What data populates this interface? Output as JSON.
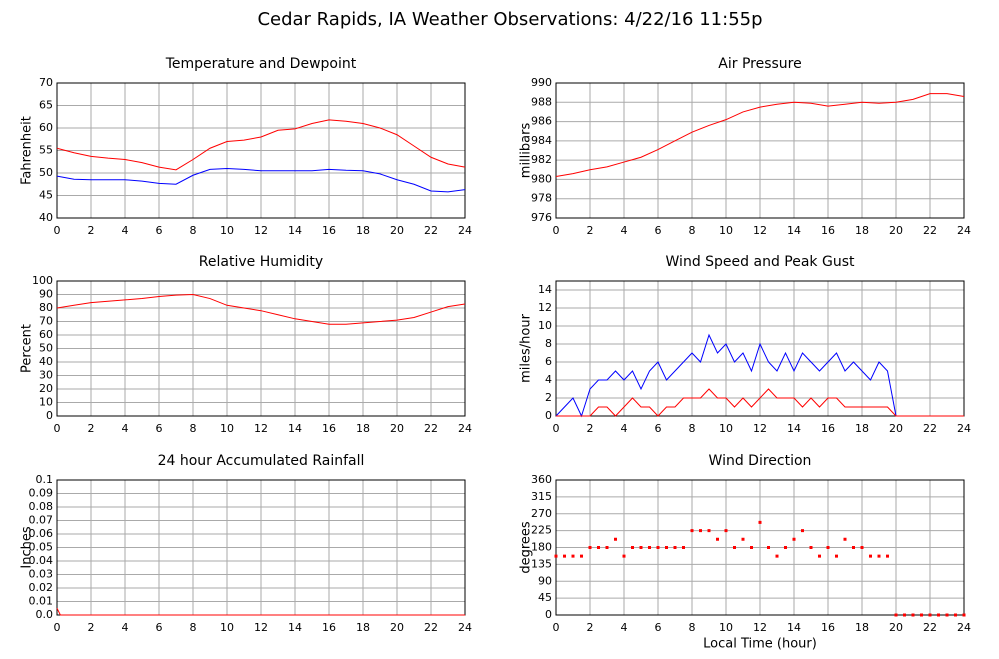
{
  "title": "Cedar Rapids, IA Weather Observations: 4/22/16 11:55p",
  "chart_data": [
    {
      "type": "line",
      "title": "Temperature and Dewpoint",
      "ylabel": "Fahrenheit",
      "x": [
        0,
        1,
        2,
        3,
        4,
        5,
        6,
        7,
        8,
        9,
        10,
        11,
        12,
        13,
        14,
        15,
        16,
        17,
        18,
        19,
        20,
        21,
        22,
        23,
        24
      ],
      "series": [
        {
          "color": "#ff0000",
          "values": [
            55.5,
            54.5,
            53.7,
            53.3,
            53,
            52.3,
            51.3,
            50.7,
            53,
            55.5,
            57,
            57.3,
            58,
            59.5,
            59.8,
            61,
            61.8,
            61.5,
            61,
            60,
            58.5,
            56,
            53.5,
            52,
            51.3
          ]
        },
        {
          "color": "#0000ff",
          "values": [
            49.3,
            48.6,
            48.5,
            48.5,
            48.5,
            48.2,
            47.7,
            47.5,
            49.5,
            50.8,
            51,
            50.8,
            50.5,
            50.5,
            50.5,
            50.5,
            50.8,
            50.6,
            50.5,
            49.8,
            48.5,
            47.5,
            46,
            45.8,
            46.3
          ]
        }
      ],
      "xlim": [
        0,
        24
      ],
      "xticks": [
        0,
        2,
        4,
        6,
        8,
        10,
        12,
        14,
        16,
        18,
        20,
        22,
        24
      ],
      "ylim": [
        40,
        70
      ],
      "yticks": [
        40,
        45,
        50,
        55,
        60,
        65,
        70
      ],
      "grid": true
    },
    {
      "type": "line",
      "title": "Air Pressure",
      "ylabel": "millibars",
      "x": [
        0,
        1,
        2,
        3,
        4,
        5,
        6,
        7,
        8,
        9,
        10,
        11,
        12,
        13,
        14,
        15,
        16,
        17,
        18,
        19,
        20,
        21,
        22,
        23,
        24
      ],
      "series": [
        {
          "color": "#ff0000",
          "values": [
            980.3,
            980.6,
            981,
            981.3,
            981.8,
            982.3,
            983.1,
            984,
            984.9,
            985.6,
            986.2,
            987,
            987.5,
            987.8,
            988,
            987.9,
            987.6,
            987.8,
            988,
            987.9,
            988,
            988.3,
            988.9,
            988.9,
            988.6
          ]
        }
      ],
      "xlim": [
        0,
        24
      ],
      "xticks": [
        0,
        2,
        4,
        6,
        8,
        10,
        12,
        14,
        16,
        18,
        20,
        22,
        24
      ],
      "ylim": [
        976,
        990
      ],
      "yticks": [
        976,
        978,
        980,
        982,
        984,
        986,
        988,
        990
      ],
      "grid": true
    },
    {
      "type": "line",
      "title": "Relative Humidity",
      "ylabel": "Percent",
      "x": [
        0,
        1,
        2,
        3,
        4,
        5,
        6,
        7,
        8,
        9,
        10,
        11,
        12,
        13,
        14,
        15,
        16,
        17,
        18,
        19,
        20,
        21,
        22,
        23,
        24
      ],
      "series": [
        {
          "color": "#ff0000",
          "values": [
            80,
            82,
            84,
            85,
            86,
            87,
            88.5,
            89.5,
            90,
            87,
            82,
            80,
            78,
            75,
            72,
            70,
            68,
            68,
            69,
            70,
            71,
            73,
            77,
            81,
            83
          ]
        }
      ],
      "xlim": [
        0,
        24
      ],
      "xticks": [
        0,
        2,
        4,
        6,
        8,
        10,
        12,
        14,
        16,
        18,
        20,
        22,
        24
      ],
      "ylim": [
        0,
        100
      ],
      "yticks": [
        0,
        10,
        20,
        30,
        40,
        50,
        60,
        70,
        80,
        90,
        100
      ],
      "grid": true
    },
    {
      "type": "line",
      "title": "Wind Speed and Peak Gust",
      "ylabel": "miles/hour",
      "x": [
        0,
        0.5,
        1,
        1.5,
        2,
        2.5,
        3,
        3.5,
        4,
        4.5,
        5,
        5.5,
        6,
        6.5,
        7,
        7.5,
        8,
        8.5,
        9,
        9.5,
        10,
        10.5,
        11,
        11.5,
        12,
        12.5,
        13,
        13.5,
        14,
        14.5,
        15,
        15.5,
        16,
        16.5,
        17,
        17.5,
        18,
        18.5,
        19,
        19.5,
        20,
        20.5,
        21,
        21.5,
        22,
        22.5,
        23,
        23.5,
        24
      ],
      "series": [
        {
          "color": "#0000ff",
          "values": [
            0,
            1,
            2,
            0,
            3,
            4,
            4,
            5,
            4,
            5,
            3,
            5,
            6,
            4,
            5,
            6,
            7,
            6,
            9,
            7,
            8,
            6,
            7,
            5,
            8,
            6,
            5,
            7,
            5,
            7,
            6,
            5,
            6,
            7,
            5,
            6,
            5,
            4,
            6,
            5,
            0,
            0,
            0,
            0,
            0,
            0,
            0,
            0,
            0
          ]
        },
        {
          "color": "#ff0000",
          "values": [
            0,
            0,
            0,
            0,
            0,
            1,
            1,
            0,
            1,
            2,
            1,
            1,
            0,
            1,
            1,
            2,
            2,
            2,
            3,
            2,
            2,
            1,
            2,
            1,
            2,
            3,
            2,
            2,
            2,
            1,
            2,
            1,
            2,
            2,
            1,
            1,
            1,
            1,
            1,
            1,
            0,
            0,
            0,
            0,
            0,
            0,
            0,
            0,
            0
          ]
        }
      ],
      "xlim": [
        0,
        24
      ],
      "xticks": [
        0,
        2,
        4,
        6,
        8,
        10,
        12,
        14,
        16,
        18,
        20,
        22,
        24
      ],
      "ylim": [
        0,
        15
      ],
      "yticks": [
        0,
        2,
        4,
        6,
        8,
        10,
        12,
        14
      ],
      "grid": true
    },
    {
      "type": "line",
      "title": "24 hour Accumulated Rainfall",
      "ylabel": "Inches",
      "x": [
        0,
        0.2,
        24
      ],
      "series": [
        {
          "color": "#ff0000",
          "values": [
            0.005,
            0,
            0
          ]
        }
      ],
      "xlim": [
        0,
        24
      ],
      "xticks": [
        0,
        2,
        4,
        6,
        8,
        10,
        12,
        14,
        16,
        18,
        20,
        22,
        24
      ],
      "ylim": [
        0,
        0.1
      ],
      "yticks": [
        {
          "value": 0,
          "label": "0.0"
        },
        0.01,
        0.02,
        0.03,
        0.04,
        0.05,
        0.06,
        0.07,
        0.08,
        0.09,
        0.1
      ],
      "grid": true
    },
    {
      "type": "scatter",
      "title": "Wind Direction",
      "ylabel": "degrees",
      "xlabel": "Local Time (hour)",
      "x": [
        0,
        0.5,
        1,
        1.5,
        2,
        2.5,
        3,
        3.5,
        4,
        4.5,
        5,
        5.5,
        6,
        6.5,
        7,
        7.5,
        8,
        8.5,
        9,
        9.5,
        10,
        10.5,
        11,
        11.5,
        12,
        12.5,
        13,
        13.5,
        14,
        14.5,
        15,
        15.5,
        16,
        16.5,
        17,
        17.5,
        18,
        18.5,
        19,
        19.5,
        20,
        20.5,
        21,
        21.5,
        22,
        22.5,
        23,
        23.5,
        24
      ],
      "series": [
        {
          "color": "#ff0000",
          "values": [
            157,
            157,
            157,
            157,
            180,
            180,
            180,
            202,
            157,
            180,
            180,
            180,
            180,
            180,
            180,
            180,
            225,
            225,
            225,
            202,
            225,
            180,
            202,
            180,
            247,
            180,
            157,
            180,
            202,
            225,
            180,
            157,
            180,
            157,
            202,
            180,
            180,
            157,
            157,
            157,
            0,
            0,
            0,
            0,
            0,
            0,
            0,
            0,
            0
          ]
        }
      ],
      "xlim": [
        0,
        24
      ],
      "xticks": [
        0,
        2,
        4,
        6,
        8,
        10,
        12,
        14,
        16,
        18,
        20,
        22,
        24
      ],
      "ylim": [
        0,
        360
      ],
      "yticks": [
        0,
        45,
        90,
        135,
        180,
        225,
        270,
        315,
        360
      ],
      "grid": true
    }
  ]
}
